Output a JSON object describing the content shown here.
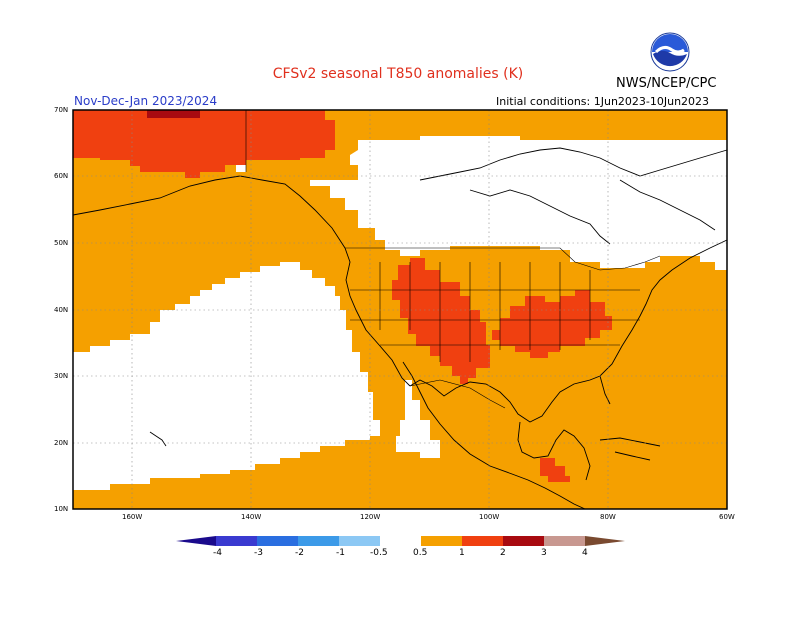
{
  "title": "CFSv2 seasonal T850 anomalies (K)",
  "period": "Nov-Dec-Jan 2023/2024",
  "initial_conditions": "Initial conditions: 1Jun2023-10Jun2023",
  "agency": "NWS/NCEP/CPC",
  "logo_text": "NOAA",
  "lat_labels": [
    "70N",
    "60N",
    "50N",
    "40N",
    "30N",
    "20N",
    "10N"
  ],
  "lon_labels": [
    "160W",
    "140W",
    "120W",
    "100W",
    "80W",
    "60W"
  ],
  "legend": {
    "labels": [
      "-4",
      "-3",
      "-2",
      "-1",
      "-0.5",
      "0.5",
      "1",
      "2",
      "3",
      "4"
    ],
    "colors": [
      "#1a0a8c",
      "#3a3ad0",
      "#2a6ee0",
      "#3c9ae8",
      "#8cc8f4",
      "#ffffff",
      "#f5a000",
      "#f04010",
      "#a80a10",
      "#c89890",
      "#7a4a30"
    ]
  },
  "colors": {
    "anomaly_0_5_1": "#f5a000",
    "anomaly_1_2": "#f04010",
    "anomaly_2_3": "#a80a10",
    "neutral": "#ffffff"
  }
}
